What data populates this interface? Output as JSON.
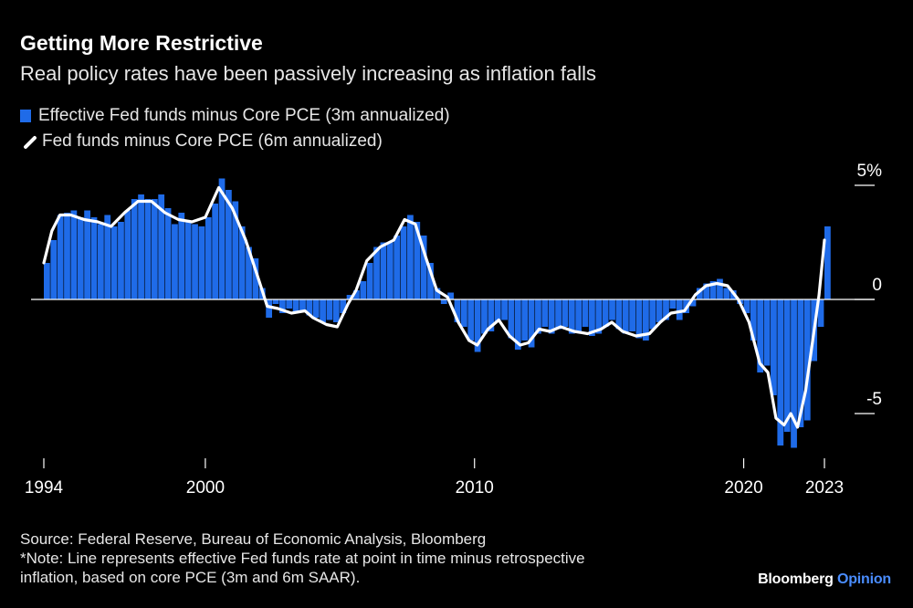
{
  "header": {
    "title": "Getting More Restrictive",
    "subtitle": "Real policy rates have been passively increasing as inflation falls"
  },
  "legend": {
    "bar_label": "Effective Fed funds minus Core PCE (3m annualized)",
    "line_label": "Fed funds minus Core PCE (6m annualized)"
  },
  "footer": {
    "source": "Source: Federal Reserve, Bureau of Economic Analysis, Bloomberg",
    "note_line1": "*Note: Line represents effective Fed funds rate at point in time minus retrospective",
    "note_line2": "inflation, based on core PCE (3m and 6m SAAR).",
    "brand_main": "Bloomberg",
    "brand_accent": "Opinion"
  },
  "colors": {
    "background": "#000000",
    "bars": "#1f6be8",
    "line": "#ffffff",
    "axis": "#ffffff"
  },
  "chart_data": {
    "type": "bar",
    "title": "Getting More Restrictive",
    "subtitle": "Real policy rates have been passively increasing as inflation falls",
    "xlabel": "",
    "ylabel": "",
    "xlim": [
      1994,
      2023.3
    ],
    "ylim": [
      -6.8,
      5
    ],
    "x_ticks": [
      {
        "value": 1994,
        "label": "1994"
      },
      {
        "value": 2000,
        "label": "2000"
      },
      {
        "value": 2010,
        "label": "2010"
      },
      {
        "value": 2020,
        "label": "2020"
      },
      {
        "value": 2023,
        "label": "2023"
      }
    ],
    "y_ticks": [
      {
        "value": 5,
        "label": "5%"
      },
      {
        "value": 0,
        "label": "0"
      },
      {
        "value": -5,
        "label": "-5"
      }
    ],
    "legend_position": "top-left",
    "series": [
      {
        "name": "Effective Fed funds minus Core PCE (3m annualized)",
        "type": "bar",
        "points": [
          [
            1994.0,
            1.6
          ],
          [
            1994.25,
            2.6
          ],
          [
            1994.5,
            3.7
          ],
          [
            1994.75,
            3.8
          ],
          [
            1995.0,
            3.9
          ],
          [
            1995.25,
            3.6
          ],
          [
            1995.5,
            3.9
          ],
          [
            1995.75,
            3.6
          ],
          [
            1996.0,
            3.3
          ],
          [
            1996.25,
            3.7
          ],
          [
            1996.5,
            3.2
          ],
          [
            1996.75,
            3.4
          ],
          [
            1997.0,
            3.9
          ],
          [
            1997.25,
            4.4
          ],
          [
            1997.5,
            4.6
          ],
          [
            1997.75,
            4.4
          ],
          [
            1998.0,
            4.4
          ],
          [
            1998.25,
            4.6
          ],
          [
            1998.5,
            4.0
          ],
          [
            1998.75,
            3.3
          ],
          [
            1999.0,
            3.8
          ],
          [
            1999.25,
            3.4
          ],
          [
            1999.5,
            3.3
          ],
          [
            1999.75,
            3.2
          ],
          [
            2000.0,
            3.6
          ],
          [
            2000.25,
            4.2
          ],
          [
            2000.5,
            5.3
          ],
          [
            2000.75,
            4.8
          ],
          [
            2001.0,
            4.3
          ],
          [
            2001.25,
            3.2
          ],
          [
            2001.5,
            2.3
          ],
          [
            2001.75,
            1.8
          ],
          [
            2002.0,
            0.5
          ],
          [
            2002.25,
            -0.8
          ],
          [
            2002.5,
            -0.2
          ],
          [
            2002.75,
            -0.6
          ],
          [
            2003.0,
            -0.4
          ],
          [
            2003.25,
            -0.6
          ],
          [
            2003.5,
            -0.5
          ],
          [
            2003.75,
            -0.7
          ],
          [
            2004.0,
            -0.8
          ],
          [
            2004.25,
            -1.0
          ],
          [
            2004.5,
            -0.9
          ],
          [
            2004.75,
            -1.0
          ],
          [
            2005.0,
            -0.6
          ],
          [
            2005.25,
            0.2
          ],
          [
            2005.5,
            0.4
          ],
          [
            2005.75,
            0.8
          ],
          [
            2006.0,
            1.6
          ],
          [
            2006.25,
            2.3
          ],
          [
            2006.5,
            2.5
          ],
          [
            2006.75,
            2.5
          ],
          [
            2007.0,
            2.8
          ],
          [
            2007.25,
            3.2
          ],
          [
            2007.5,
            3.7
          ],
          [
            2007.75,
            3.4
          ],
          [
            2008.0,
            2.8
          ],
          [
            2008.25,
            1.6
          ],
          [
            2008.5,
            0.5
          ],
          [
            2008.75,
            -0.2
          ],
          [
            2009.0,
            0.3
          ],
          [
            2009.25,
            -1.0
          ],
          [
            2009.5,
            -1.2
          ],
          [
            2009.75,
            -1.8
          ],
          [
            2010.0,
            -2.3
          ],
          [
            2010.25,
            -1.5
          ],
          [
            2010.5,
            -1.4
          ],
          [
            2010.75,
            -1.0
          ],
          [
            2011.0,
            -0.9
          ],
          [
            2011.25,
            -1.7
          ],
          [
            2011.5,
            -2.2
          ],
          [
            2011.75,
            -1.8
          ],
          [
            2012.0,
            -2.1
          ],
          [
            2012.25,
            -1.5
          ],
          [
            2012.5,
            -1.2
          ],
          [
            2012.75,
            -1.5
          ],
          [
            2013.0,
            -1.3
          ],
          [
            2013.25,
            -1.2
          ],
          [
            2013.5,
            -1.5
          ],
          [
            2013.75,
            -1.4
          ],
          [
            2014.0,
            -1.2
          ],
          [
            2014.25,
            -1.6
          ],
          [
            2014.5,
            -1.5
          ],
          [
            2014.75,
            -1.2
          ],
          [
            2015.0,
            -0.9
          ],
          [
            2015.25,
            -1.3
          ],
          [
            2015.5,
            -1.5
          ],
          [
            2015.75,
            -1.4
          ],
          [
            2016.0,
            -1.7
          ],
          [
            2016.25,
            -1.8
          ],
          [
            2016.5,
            -1.3
          ],
          [
            2016.75,
            -1.0
          ],
          [
            2017.0,
            -0.9
          ],
          [
            2017.25,
            -0.4
          ],
          [
            2017.5,
            -0.9
          ],
          [
            2017.75,
            -0.6
          ],
          [
            2018.0,
            -0.3
          ],
          [
            2018.25,
            0.5
          ],
          [
            2018.5,
            0.7
          ],
          [
            2018.75,
            0.8
          ],
          [
            2019.0,
            0.9
          ],
          [
            2019.25,
            0.5
          ],
          [
            2019.5,
            0.4
          ],
          [
            2019.75,
            -0.2
          ],
          [
            2020.0,
            -0.6
          ],
          [
            2020.25,
            -1.8
          ],
          [
            2020.5,
            -3.2
          ],
          [
            2020.75,
            -2.9
          ],
          [
            2021.0,
            -4.2
          ],
          [
            2021.25,
            -6.4
          ],
          [
            2021.5,
            -5.8
          ],
          [
            2021.75,
            -6.5
          ],
          [
            2022.0,
            -5.6
          ],
          [
            2022.25,
            -5.3
          ],
          [
            2022.5,
            -2.7
          ],
          [
            2022.75,
            -1.2
          ],
          [
            2023.0,
            3.2
          ]
        ]
      },
      {
        "name": "Fed funds minus Core PCE (6m annualized)",
        "type": "line",
        "points": [
          [
            1994.0,
            1.6
          ],
          [
            1994.3,
            3.0
          ],
          [
            1994.6,
            3.7
          ],
          [
            1995.0,
            3.7
          ],
          [
            1995.5,
            3.5
          ],
          [
            1996.0,
            3.4
          ],
          [
            1996.5,
            3.2
          ],
          [
            1997.0,
            3.8
          ],
          [
            1997.5,
            4.3
          ],
          [
            1998.0,
            4.3
          ],
          [
            1998.5,
            3.8
          ],
          [
            1999.0,
            3.5
          ],
          [
            1999.5,
            3.4
          ],
          [
            2000.0,
            3.6
          ],
          [
            2000.5,
            4.9
          ],
          [
            2001.0,
            4.0
          ],
          [
            2001.5,
            2.6
          ],
          [
            2002.0,
            0.8
          ],
          [
            2002.3,
            -0.3
          ],
          [
            2002.7,
            -0.4
          ],
          [
            2003.2,
            -0.6
          ],
          [
            2003.7,
            -0.5
          ],
          [
            2004.0,
            -0.8
          ],
          [
            2004.5,
            -1.1
          ],
          [
            2004.9,
            -1.2
          ],
          [
            2005.3,
            -0.2
          ],
          [
            2005.6,
            0.4
          ],
          [
            2006.0,
            1.7
          ],
          [
            2006.5,
            2.3
          ],
          [
            2007.0,
            2.6
          ],
          [
            2007.4,
            3.5
          ],
          [
            2007.8,
            3.3
          ],
          [
            2008.2,
            1.8
          ],
          [
            2008.6,
            0.4
          ],
          [
            2009.0,
            0.1
          ],
          [
            2009.4,
            -1.0
          ],
          [
            2009.8,
            -1.8
          ],
          [
            2010.1,
            -2.0
          ],
          [
            2010.5,
            -1.3
          ],
          [
            2010.9,
            -0.9
          ],
          [
            2011.3,
            -1.6
          ],
          [
            2011.7,
            -2.0
          ],
          [
            2012.0,
            -1.9
          ],
          [
            2012.4,
            -1.3
          ],
          [
            2012.8,
            -1.4
          ],
          [
            2013.2,
            -1.2
          ],
          [
            2013.7,
            -1.4
          ],
          [
            2014.2,
            -1.5
          ],
          [
            2014.7,
            -1.3
          ],
          [
            2015.1,
            -1.0
          ],
          [
            2015.5,
            -1.4
          ],
          [
            2016.0,
            -1.6
          ],
          [
            2016.5,
            -1.5
          ],
          [
            2016.9,
            -1.0
          ],
          [
            2017.3,
            -0.6
          ],
          [
            2017.8,
            -0.5
          ],
          [
            2018.2,
            0.2
          ],
          [
            2018.6,
            0.6
          ],
          [
            2019.0,
            0.7
          ],
          [
            2019.4,
            0.6
          ],
          [
            2019.8,
            0.0
          ],
          [
            2020.2,
            -1.0
          ],
          [
            2020.6,
            -2.8
          ],
          [
            2020.9,
            -3.2
          ],
          [
            2021.2,
            -5.2
          ],
          [
            2021.5,
            -5.5
          ],
          [
            2021.75,
            -5.0
          ],
          [
            2022.0,
            -5.6
          ],
          [
            2022.3,
            -4.0
          ],
          [
            2022.6,
            -1.5
          ],
          [
            2022.8,
            0.2
          ],
          [
            2023.0,
            2.6
          ]
        ]
      }
    ]
  }
}
